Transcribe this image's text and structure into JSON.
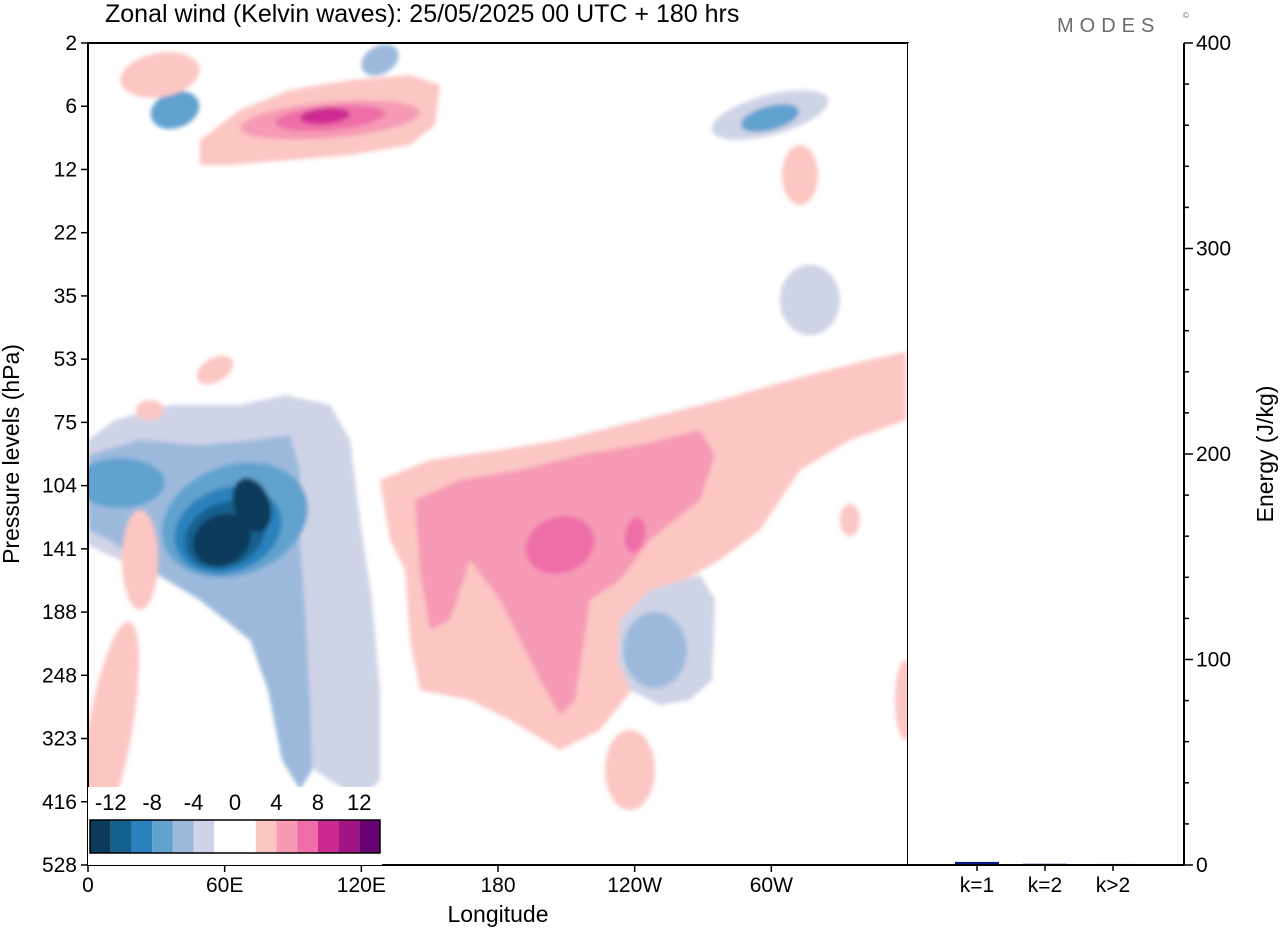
{
  "title": "Zonal wind (Kelvin waves):  25/05/2025  00 UTC  + 180 hrs",
  "brand": "MODES",
  "brand_mark": "©",
  "colors": {
    "levels": [
      "#0d3b5c",
      "#14608e",
      "#2b82bd",
      "#62a2cf",
      "#9cb9dc",
      "#cfd3e6",
      "#ffffff",
      "#ffffff",
      "#fcc6c3",
      "#f69ab5",
      "#ee6ea8",
      "#cc2a91",
      "#a21486",
      "#660073"
    ],
    "neg_contour": "#cfd3e6",
    "pos_contour": "#fcc6c3",
    "bar": "#0a1a8a"
  },
  "chart_data": [
    {
      "type": "heatmap",
      "name": "zonal-wind-kelvin",
      "variable": "Zonal wind (Kelvin waves)",
      "xlabel": "Longitude",
      "ylabel": "Pressure levels (hPa)",
      "x_ticks": [
        "0",
        "60E",
        "120E",
        "180",
        "120W",
        "60W"
      ],
      "x_tick_degrees": [
        0,
        60,
        120,
        180,
        240,
        300
      ],
      "xlim_degrees": [
        0,
        360
      ],
      "y_ticks": [
        "2",
        "6",
        "12",
        "22",
        "35",
        "53",
        "75",
        "104",
        "141",
        "188",
        "248",
        "323",
        "416",
        "528"
      ],
      "y_scale": "pressure levels, top to bottom",
      "colorbar": {
        "ticks": [
          "-12",
          "-8",
          "-4",
          "0",
          "4",
          "8",
          "12"
        ],
        "interval": 2,
        "range": [
          -14,
          14
        ],
        "placement": "bottom-left inset"
      },
      "features": [
        {
          "label": "easterly core",
          "lon": 55,
          "level": "104-188 hPa",
          "min": -14
        },
        {
          "label": "easterly",
          "lon": 10,
          "level": "104 hPa",
          "min": -6
        },
        {
          "label": "easterly",
          "lon": 255,
          "level": "188-248 hPa",
          "min": -6
        },
        {
          "label": "westerly",
          "lon": 215,
          "level": "104-188 hPa",
          "max": 8
        },
        {
          "label": "westerly",
          "lon": 240,
          "level": "141 hPa",
          "max": 8
        },
        {
          "label": "westerly",
          "lon": 165,
          "level": "104-248 hPa",
          "max": 6
        },
        {
          "label": "westerly jet",
          "lon": 110,
          "level": "6 hPa",
          "max": 10
        },
        {
          "label": "easterly",
          "lon": 40,
          "level": "6 hPa",
          "min": -6
        },
        {
          "label": "easterly",
          "lon": 300,
          "level": "6 hPa",
          "min": -6
        }
      ]
    },
    {
      "type": "bar",
      "name": "kelvin-energy",
      "ylabel": "Energy (J/kg)",
      "ylim": [
        0,
        400
      ],
      "y_ticks": [
        "0",
        "100",
        "200",
        "300",
        "400"
      ],
      "categories": [
        "k=1",
        "k=2",
        "k>2"
      ],
      "values": [
        1.5,
        0.6,
        0.5
      ]
    }
  ]
}
